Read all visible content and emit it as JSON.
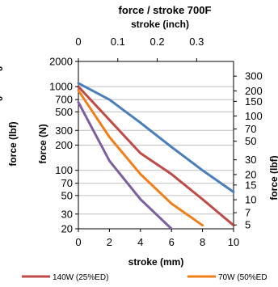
{
  "chart_data": {
    "type": "line",
    "title": "force / stroke 700F",
    "x_axis_bottom": {
      "label": "stroke (mm)",
      "range": [
        0,
        10
      ],
      "ticks": [
        0,
        2,
        4,
        6,
        8,
        10
      ],
      "tick_labels": [
        "0",
        "2",
        "4",
        "6",
        "8",
        "10"
      ]
    },
    "x_axis_top": {
      "label": "stroke (inch)",
      "ticks": [
        0,
        0.1,
        0.2,
        0.3
      ],
      "tick_labels": [
        "0",
        "0.1",
        "0.2",
        "0.3"
      ]
    },
    "y_axis_left": {
      "label": "force (N)",
      "scale": "log",
      "range": [
        20,
        2000
      ],
      "ticks": [
        20,
        30,
        50,
        70,
        100,
        200,
        300,
        500,
        700,
        1000,
        2000
      ],
      "tick_labels": [
        "20",
        "30",
        "50",
        "70",
        "100",
        "200",
        "300",
        "500",
        "700",
        "1000",
        "2000"
      ]
    },
    "y_axis_right": {
      "label": "force (lbf)",
      "scale": "log",
      "ticks": [
        5,
        7,
        10,
        15,
        20,
        30,
        50,
        70,
        100,
        150,
        200,
        300
      ],
      "tick_labels": [
        "5",
        "7",
        "10",
        "15",
        "20",
        "30",
        "50",
        "70",
        "100",
        "150",
        "200",
        "300"
      ]
    },
    "outer_left_label": "force (lbf)",
    "outer_left_clipped_ticks": [
      "0",
      "0"
    ],
    "series": [
      {
        "name": "",
        "color": "#4a7ebb",
        "x": [
          0,
          2,
          4,
          6,
          8,
          10
        ],
        "y": [
          1100,
          700,
          370,
          190,
          100,
          55
        ]
      },
      {
        "name": "140W (25%ED)",
        "color": "#be4b48",
        "x": [
          0,
          2,
          4,
          6,
          8,
          10
        ],
        "y": [
          1000,
          400,
          160,
          90,
          45,
          22
        ]
      },
      {
        "name": "70W (50%ED)",
        "color": "#f07f1a",
        "x": [
          0,
          2,
          4,
          6,
          8
        ],
        "y": [
          900,
          250,
          90,
          40,
          22
        ]
      },
      {
        "name": "",
        "color": "#7d5fa0",
        "x": [
          0,
          2,
          4,
          6
        ],
        "y": [
          650,
          130,
          45,
          20
        ]
      }
    ],
    "legend": {
      "position": "bottom",
      "entries": [
        "140W (25%ED)",
        "70W (50%ED"
      ]
    },
    "grid": "horizontal"
  }
}
